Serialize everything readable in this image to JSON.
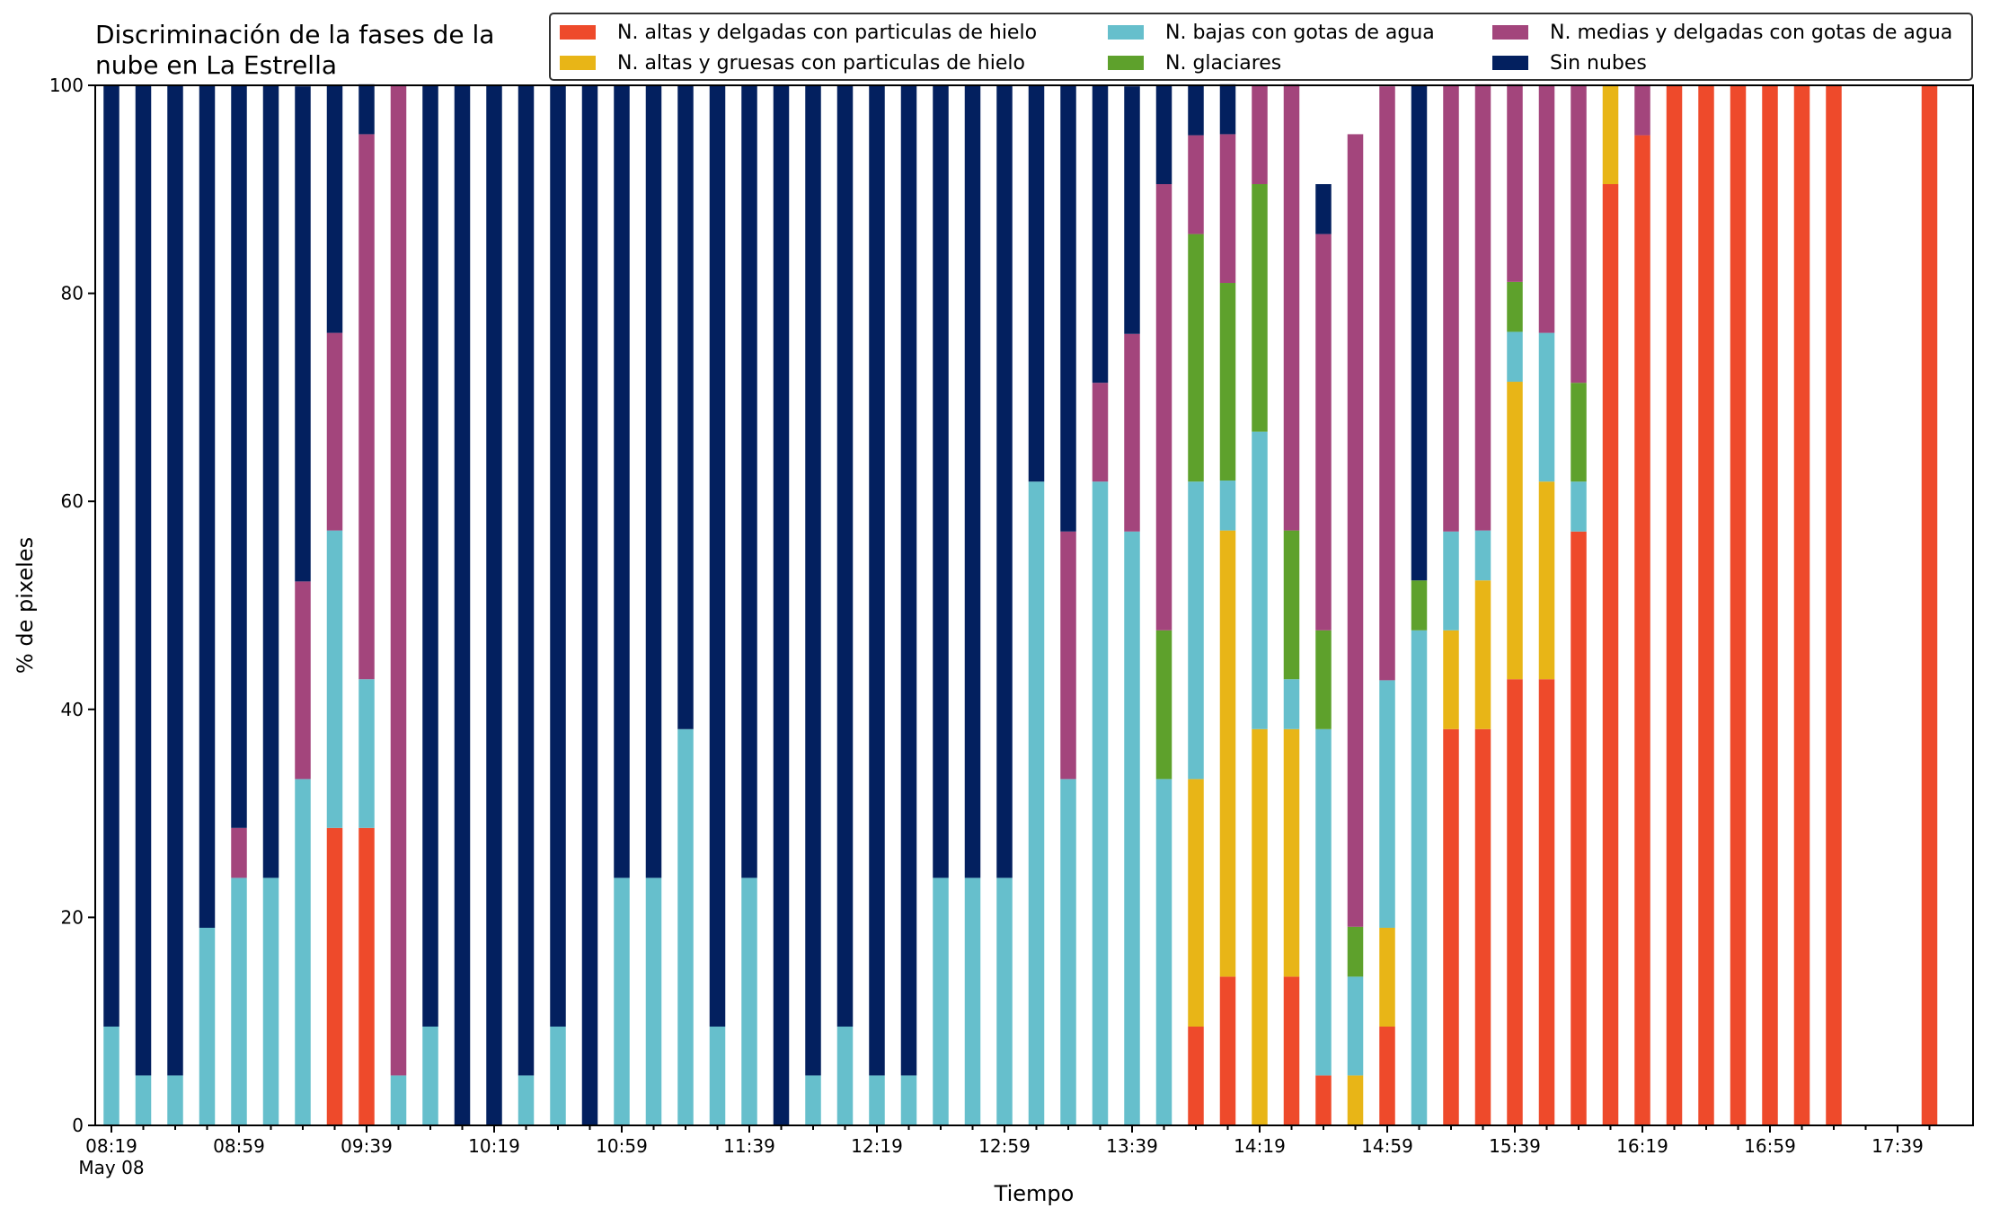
{
  "chart_data": {
    "type": "bar",
    "stacked": true,
    "title": "Discriminación de la fases de la\nnube en La Estrella",
    "xlabel": "Tiempo",
    "ylabel": "% de pixeles",
    "ylim": [
      0,
      100
    ],
    "yticks": [
      0,
      20,
      40,
      60,
      80,
      100
    ],
    "xtick_labels": [
      "08:19",
      "08:59",
      "09:39",
      "10:19",
      "10:59",
      "11:39",
      "12:19",
      "12:59",
      "13:39",
      "14:19",
      "14:59",
      "15:39",
      "16:19",
      "16:59",
      "17:39"
    ],
    "xtick_sublabel": "May 08",
    "legend_position": "top-right",
    "categories": [
      "08:19",
      "08:29",
      "08:39",
      "08:49",
      "08:59",
      "09:09",
      "09:19",
      "09:29",
      "09:39",
      "09:49",
      "09:59",
      "10:09",
      "10:19",
      "10:29",
      "10:39",
      "10:49",
      "10:59",
      "11:09",
      "11:19",
      "11:29",
      "11:39",
      "11:49",
      "11:59",
      "12:09",
      "12:19",
      "12:29",
      "12:39",
      "12:49",
      "12:59",
      "13:09",
      "13:19",
      "13:29",
      "13:39",
      "13:49",
      "13:59",
      "14:09",
      "14:19",
      "14:29",
      "14:39",
      "14:49",
      "14:59",
      "15:09",
      "15:19",
      "15:29",
      "15:39",
      "15:49",
      "15:59",
      "16:09",
      "16:19",
      "16:29",
      "16:39",
      "16:49",
      "16:59",
      "17:09",
      "17:19",
      "17:29",
      "17:39",
      "17:49"
    ],
    "series": [
      {
        "name": "N. altas y delgadas con particulas de hielo",
        "color": "#ee4a2b",
        "values": [
          0,
          0,
          0,
          0,
          0,
          0,
          0,
          28.6,
          28.6,
          0,
          0,
          0,
          0,
          0,
          0,
          0,
          0,
          0,
          0,
          0,
          0,
          0,
          0,
          0,
          0,
          0,
          0,
          0,
          0,
          0,
          0,
          0,
          0,
          0,
          9.5,
          14.3,
          0,
          14.3,
          4.8,
          0,
          9.5,
          0,
          38.1,
          38.1,
          42.9,
          42.9,
          57.1,
          90.5,
          95.2,
          100,
          100,
          100,
          100,
          100,
          100,
          0,
          0,
          100
        ]
      },
      {
        "name": "N. altas y gruesas con particulas de hielo",
        "color": "#e8b517",
        "values": [
          0,
          0,
          0,
          0,
          0,
          0,
          0,
          0,
          0,
          0,
          0,
          0,
          0,
          0,
          0,
          0,
          0,
          0,
          0,
          0,
          0,
          0,
          0,
          0,
          0,
          0,
          0,
          0,
          0,
          0,
          0,
          0,
          0,
          0,
          23.8,
          42.9,
          38.1,
          23.8,
          0,
          4.8,
          9.5,
          0,
          9.5,
          14.3,
          28.6,
          19.0,
          0,
          9.5,
          0,
          0,
          0,
          0,
          0,
          0,
          0,
          0,
          0,
          0
        ]
      },
      {
        "name": "N. bajas con gotas de agua",
        "color": "#66bfcc",
        "values": [
          9.5,
          4.8,
          4.8,
          19.0,
          23.8,
          23.8,
          33.3,
          28.6,
          14.3,
          4.8,
          9.5,
          0,
          0,
          4.8,
          9.5,
          0,
          23.8,
          23.8,
          38.1,
          9.5,
          23.8,
          0,
          4.8,
          9.5,
          4.8,
          4.8,
          23.8,
          23.8,
          23.8,
          61.9,
          33.3,
          61.9,
          57.1,
          33.3,
          28.6,
          4.8,
          28.6,
          4.8,
          33.3,
          9.5,
          23.8,
          47.6,
          9.5,
          4.8,
          4.8,
          14.3,
          4.8,
          0,
          0,
          0,
          0,
          0,
          0,
          0,
          0,
          0,
          0,
          0
        ]
      },
      {
        "name": "N. glaciares",
        "color": "#5ea12c",
        "values": [
          0,
          0,
          0,
          0,
          0,
          0,
          0,
          0,
          0,
          0,
          0,
          0,
          0,
          0,
          0,
          0,
          0,
          0,
          0,
          0,
          0,
          0,
          0,
          0,
          0,
          0,
          0,
          0,
          0,
          0,
          0,
          0,
          0,
          14.3,
          23.8,
          19.0,
          23.8,
          14.3,
          9.5,
          4.8,
          0,
          4.8,
          0,
          0,
          4.8,
          0,
          9.5,
          0,
          0,
          0,
          0,
          0,
          0,
          0,
          0,
          0,
          0,
          0
        ]
      },
      {
        "name": "N. medias y delgadas con gotas de agua",
        "color": "#a3457c",
        "values": [
          0,
          0,
          0,
          0,
          4.8,
          0,
          19.0,
          19.0,
          52.4,
          95.2,
          0,
          0,
          0,
          0,
          0,
          0,
          0,
          0,
          0,
          0,
          0,
          0,
          0,
          0,
          0,
          0,
          0,
          0,
          0,
          0,
          23.8,
          9.5,
          19.0,
          42.9,
          9.5,
          14.3,
          9.5,
          42.9,
          38.1,
          76.2,
          57.1,
          0,
          42.9,
          42.9,
          19.0,
          23.8,
          28.6,
          0,
          4.8,
          0,
          0,
          0,
          0,
          0,
          0,
          0,
          0,
          0
        ]
      },
      {
        "name": "Sin nubes",
        "color": "#03205f",
        "values": [
          90.5,
          95.2,
          95.2,
          81.0,
          71.4,
          76.2,
          47.6,
          23.8,
          4.8,
          0,
          90.5,
          100,
          100,
          95.2,
          90.5,
          100,
          76.2,
          76.2,
          61.9,
          90.5,
          76.2,
          100,
          95.2,
          90.5,
          95.2,
          95.2,
          76.2,
          76.2,
          76.2,
          38.1,
          42.9,
          28.6,
          23.8,
          9.5,
          4.8,
          4.8,
          0,
          0,
          4.8,
          0,
          0,
          47.6,
          0,
          0,
          0,
          0,
          0,
          0,
          0,
          0,
          0,
          0,
          0,
          0,
          0,
          0,
          0,
          0
        ]
      }
    ]
  }
}
